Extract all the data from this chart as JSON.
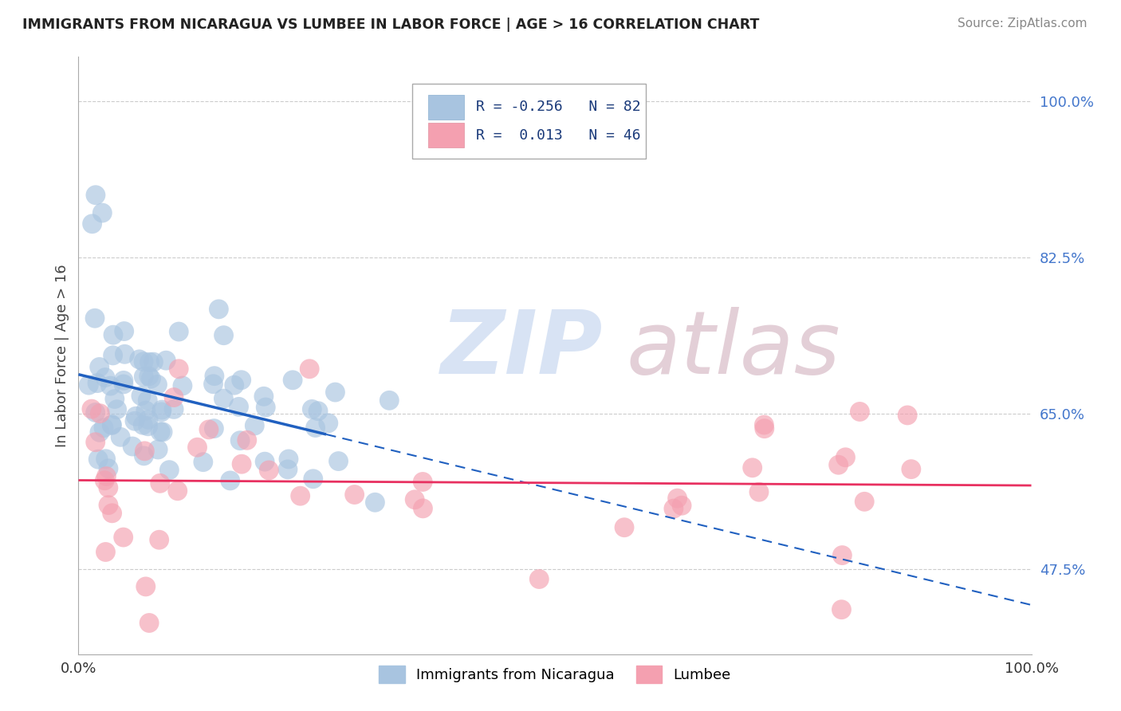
{
  "title": "IMMIGRANTS FROM NICARAGUA VS LUMBEE IN LABOR FORCE | AGE > 16 CORRELATION CHART",
  "source": "Source: ZipAtlas.com",
  "ylabel": "In Labor Force | Age > 16",
  "xlim": [
    0.0,
    1.0
  ],
  "ylim": [
    0.38,
    1.05
  ],
  "ytick_positions": [
    0.475,
    0.65,
    0.825,
    1.0
  ],
  "ytick_labels": [
    "47.5%",
    "65.0%",
    "82.5%",
    "100.0%"
  ],
  "blue_R": -0.256,
  "blue_N": 82,
  "pink_R": 0.013,
  "pink_N": 46,
  "blue_color": "#a8c4e0",
  "pink_color": "#f4a0b0",
  "blue_line_color": "#2060c0",
  "pink_line_color": "#e83060",
  "watermark": "ZIPatlas",
  "watermark_blue": "#c8d8f0",
  "watermark_pink": "#c8a0b0",
  "legend_label_blue": "Immigrants from Nicaragua",
  "legend_label_pink": "Lumbee",
  "background_color": "#ffffff",
  "grid_color": "#cccccc"
}
